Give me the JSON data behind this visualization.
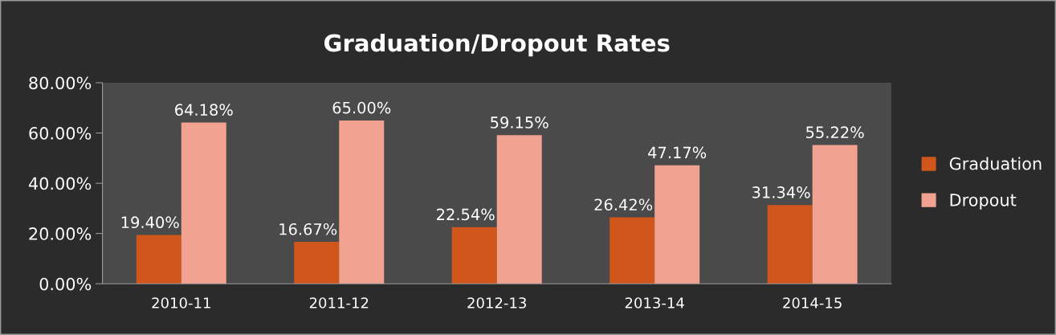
{
  "chart_data": {
    "type": "bar",
    "title": "Graduation/Dropout Rates",
    "categories": [
      "2010-11",
      "2011-12",
      "2012-13",
      "2013-14",
      "2014-15"
    ],
    "series": [
      {
        "name": "Graduation",
        "color": "#d0561c",
        "values": [
          19.4,
          16.67,
          22.54,
          26.42,
          31.34
        ],
        "value_labels": [
          "19.40%",
          "16.67%",
          "22.54%",
          "26.42%",
          "31.34%"
        ]
      },
      {
        "name": "Dropout",
        "color": "#f2a290",
        "values": [
          64.18,
          65.0,
          59.15,
          47.17,
          55.22
        ],
        "value_labels": [
          "64.18%",
          "65.00%",
          "59.15%",
          "47.17%",
          "55.22%"
        ]
      }
    ],
    "ylim": [
      0,
      80
    ],
    "yticks": [
      {
        "value": 0,
        "label": "0.00%"
      },
      {
        "value": 20,
        "label": "20.00%"
      },
      {
        "value": 40,
        "label": "40.00%"
      },
      {
        "value": 60,
        "label": "60.00%"
      },
      {
        "value": 80,
        "label": "80.00%"
      }
    ],
    "grid": false,
    "legend": "right"
  }
}
